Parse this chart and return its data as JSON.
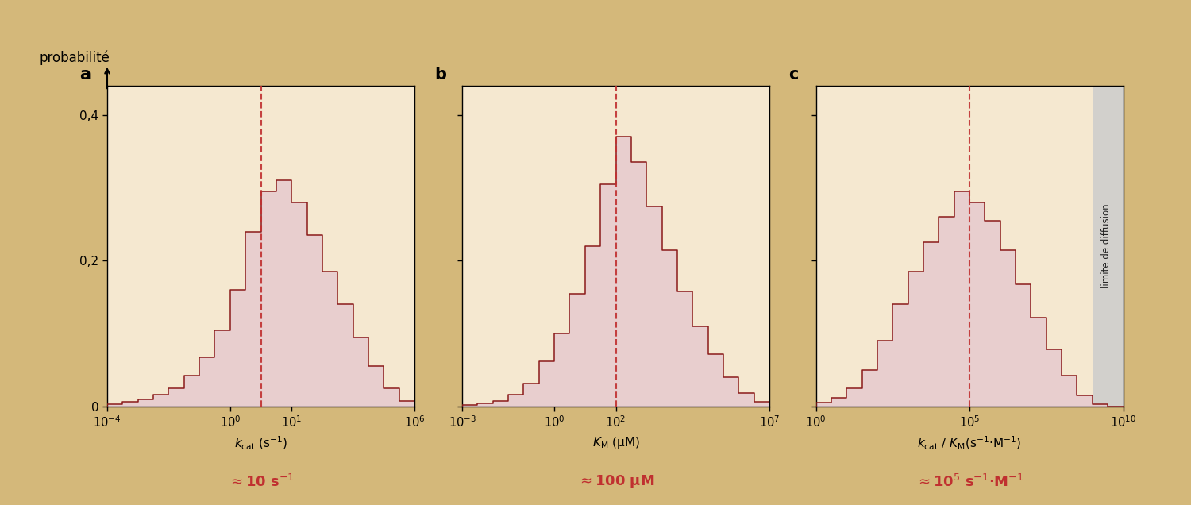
{
  "background_color": "#d4b87a",
  "panel_bg": "#f5e8d0",
  "hist_fill": "#e8cece",
  "hist_edge": "#8b1a1a",
  "dashed_color": "#c03030",
  "annotation_color": "#c03030",
  "panel_labels": [
    "a",
    "b",
    "c"
  ],
  "ylim": [
    0,
    0.44
  ],
  "yticks": [
    0,
    0.2,
    0.4
  ],
  "yticklabels": [
    "0",
    "0,2",
    "0,4"
  ],
  "ylabel_text": "probabilité",
  "panels": [
    {
      "key": "a",
      "xmin": -4,
      "xmax": 6,
      "xlabel_str": "$k_{\\mathrm{cat}}$ (s$^{-1}$)",
      "median_log": 1.0,
      "annotation": "$\\approx$10 s$^{-1}$",
      "xtick_positions": [
        -4,
        0,
        2,
        6
      ],
      "xtick_labels": [
        "10$^{-4}$",
        "10$^{0}$",
        "10$^{1}$",
        "10$^{6}$"
      ],
      "hist_bins": [
        -4.0,
        -3.5,
        -3.0,
        -2.5,
        -2.0,
        -1.5,
        -1.0,
        -0.5,
        0.0,
        0.5,
        1.0,
        1.5,
        2.0,
        2.5,
        3.0,
        3.5,
        4.0,
        4.5,
        5.0,
        5.5,
        6.0
      ],
      "hist_vals": [
        0.003,
        0.006,
        0.01,
        0.016,
        0.025,
        0.042,
        0.068,
        0.105,
        0.16,
        0.24,
        0.295,
        0.31,
        0.28,
        0.235,
        0.185,
        0.14,
        0.095,
        0.055,
        0.025,
        0.008
      ],
      "diffusion_limit": null
    },
    {
      "key": "b",
      "xmin": -3,
      "xmax": 7,
      "xlabel_str": "$K_{\\mathrm{M}}$ (μM)",
      "median_log": 2.0,
      "annotation": "$\\approx$100 μM",
      "xtick_positions": [
        -3,
        0,
        2,
        7
      ],
      "xtick_labels": [
        "10$^{-3}$",
        "10$^{0}$",
        "10$^{2}$",
        "10$^{7}$"
      ],
      "hist_bins": [
        -3.0,
        -2.5,
        -2.0,
        -1.5,
        -1.0,
        -0.5,
        0.0,
        0.5,
        1.0,
        1.5,
        2.0,
        2.5,
        3.0,
        3.5,
        4.0,
        4.5,
        5.0,
        5.5,
        6.0,
        6.5,
        7.0
      ],
      "hist_vals": [
        0.002,
        0.004,
        0.008,
        0.016,
        0.032,
        0.062,
        0.1,
        0.155,
        0.22,
        0.305,
        0.37,
        0.335,
        0.275,
        0.215,
        0.158,
        0.11,
        0.072,
        0.04,
        0.018,
        0.006
      ],
      "diffusion_limit": null
    },
    {
      "key": "c",
      "xmin": 0,
      "xmax": 10,
      "xlabel_str": "$k_{\\mathrm{cat}}$ / $K_{\\mathrm{M}}$(s$^{-1}$·M$^{-1}$)",
      "median_log": 5.0,
      "annotation": "$\\approx$10$^{5}$ s$^{-1}$·M$^{-1}$",
      "xtick_positions": [
        0,
        5,
        10
      ],
      "xtick_labels": [
        "10$^{0}$",
        "10$^{5}$",
        "10$^{10}$"
      ],
      "hist_bins": [
        0.0,
        0.5,
        1.0,
        1.5,
        2.0,
        2.5,
        3.0,
        3.5,
        4.0,
        4.5,
        5.0,
        5.5,
        6.0,
        6.5,
        7.0,
        7.5,
        8.0,
        8.5,
        9.0,
        9.5,
        10.0
      ],
      "hist_vals": [
        0.005,
        0.012,
        0.025,
        0.05,
        0.09,
        0.14,
        0.185,
        0.225,
        0.26,
        0.295,
        0.28,
        0.255,
        0.215,
        0.168,
        0.122,
        0.078,
        0.042,
        0.015,
        0.003,
        0.0
      ],
      "diffusion_limit": 9.0
    }
  ]
}
